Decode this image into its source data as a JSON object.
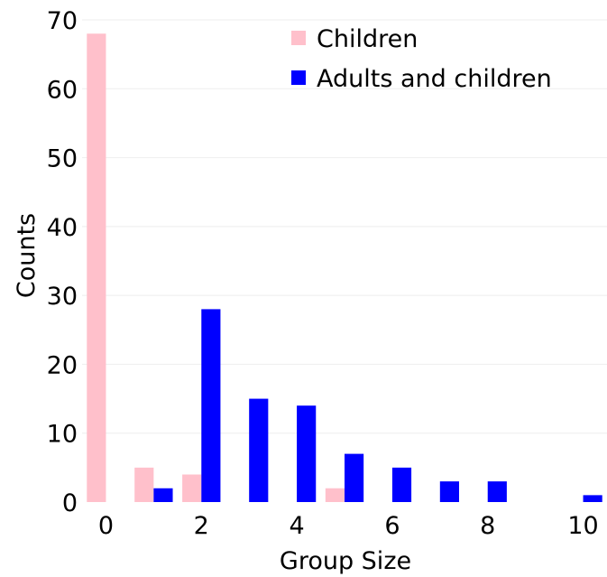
{
  "chart_data": {
    "type": "bar",
    "xlabel": "Group Size",
    "ylabel": "Counts",
    "xlim": [
      -0.5,
      10.5
    ],
    "ylim": [
      0,
      70
    ],
    "x_ticks": [
      0,
      2,
      4,
      6,
      8,
      10
    ],
    "y_ticks": [
      0,
      10,
      20,
      30,
      40,
      50,
      60,
      70
    ],
    "grid": "horizontal",
    "legend_position": "top-right",
    "x": [
      0,
      1,
      2,
      3,
      4,
      5,
      6,
      7,
      8,
      9,
      10
    ],
    "series": [
      {
        "name": "Children",
        "color": "#ffc0cb",
        "values": [
          68,
          5,
          4,
          0,
          0,
          2,
          0,
          0,
          0,
          0,
          0
        ]
      },
      {
        "name": "Adults and children",
        "color": "#0000ff",
        "values": [
          0,
          2,
          28,
          15,
          14,
          7,
          5,
          3,
          3,
          0,
          1
        ]
      }
    ]
  }
}
